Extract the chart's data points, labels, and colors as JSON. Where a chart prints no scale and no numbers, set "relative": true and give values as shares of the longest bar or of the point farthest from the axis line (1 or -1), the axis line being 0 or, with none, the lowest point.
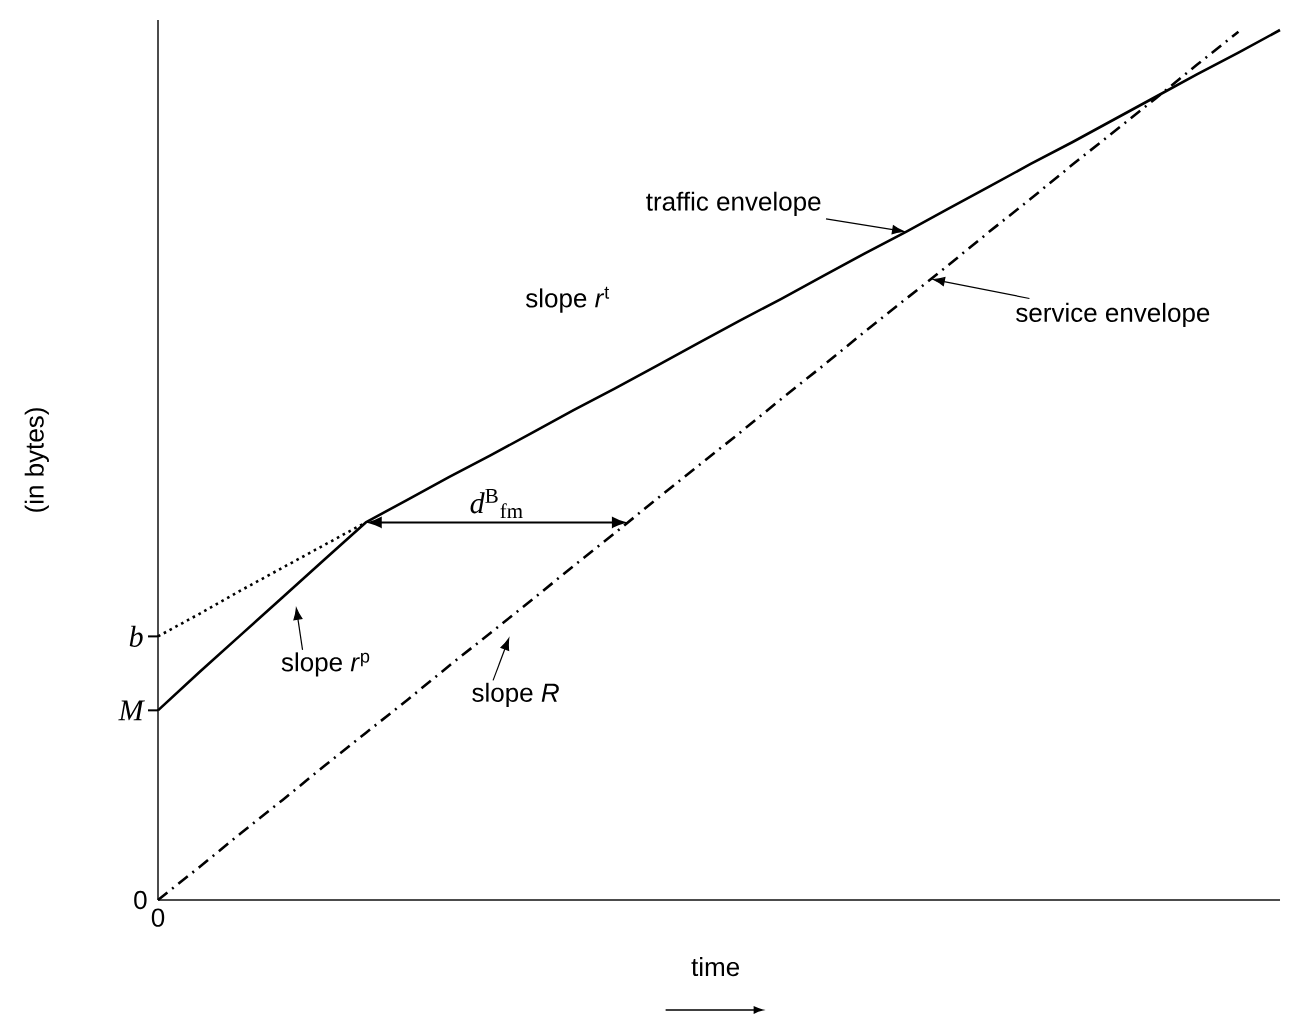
{
  "chart_data": {
    "type": "line",
    "relative": true,
    "xlabel": "time",
    "ylabel": "(in bytes)",
    "categories": [
      null,
      null,
      null,
      null,
      null,
      null,
      null,
      null,
      null,
      null,
      null,
      null,
      null,
      null,
      null,
      null,
      null,
      null,
      null,
      null,
      null,
      null,
      null,
      null,
      null,
      null,
      null,
      null
    ],
    "series": [
      {
        "name": "traffic envelope",
        "color": "#000000",
        "line_style": "solid",
        "values": [
          0.218,
          0.262,
          0.305,
          0.348,
          0.391,
          0.434,
          0.46,
          0.486,
          0.511,
          0.537,
          0.563,
          0.588,
          0.614,
          0.64,
          0.666,
          0.691,
          0.717,
          0.743,
          0.768,
          0.794,
          0.82,
          0.846,
          0.871,
          0.897,
          0.923,
          0.949,
          0.974,
          1.0
        ]
      },
      {
        "color": "#000000",
        "line_style": "dotted",
        "values": [
          0.303,
          0.329,
          0.356,
          0.382,
          0.408,
          0.434,
          null,
          null,
          null,
          null,
          null,
          null,
          null,
          null,
          null,
          null,
          null,
          null,
          null,
          null,
          null,
          null,
          null,
          null,
          null,
          null,
          null,
          null
        ]
      },
      {
        "name": "service envelope",
        "color": "#000000",
        "line_style": "dashdot",
        "values": [
          0,
          0.038,
          0.077,
          0.115,
          0.154,
          0.192,
          0.23,
          0.269,
          0.307,
          0.345,
          0.384,
          0.422,
          0.461,
          0.499,
          0.537,
          0.576,
          0.614,
          0.653,
          0.691,
          0.729,
          0.768,
          0.806,
          0.845,
          0.883,
          0.921,
          0.96,
          0.998,
          null
        ]
      }
    ],
    "annotations": [
      "slope *r*$^{t}$",
      "slope *r*$^{p}$",
      "slope *R*",
      "*d*$^{B}$$_{fm}$",
      "0",
      "M",
      "b",
      "0"
    ]
  }
}
